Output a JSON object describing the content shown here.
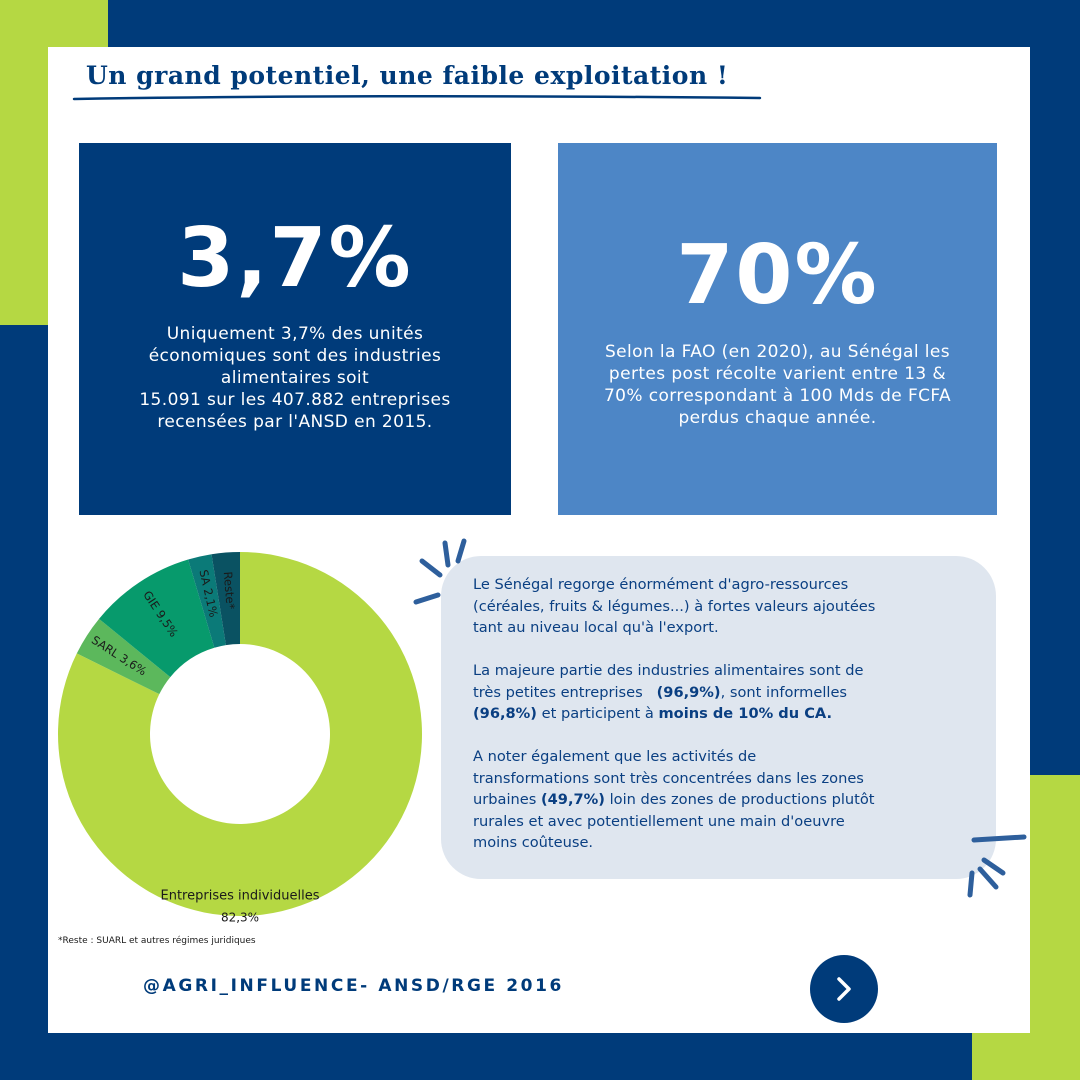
{
  "title": "Un grand potentiel, une faible exploitation !",
  "stat_left": {
    "value": "3,7%",
    "lines": [
      "Uniquement 3,7% des unités",
      "économiques sont des industries",
      "alimentaires soit",
      "15.091 sur les 407.882 entreprises",
      "recensées par l'ANSD en 2015."
    ]
  },
  "stat_right": {
    "value": "70%",
    "lines": [
      "Selon la FAO (en 2020), au Sénégal les",
      "pertes post récolte varient entre 13 &",
      "70% correspondant à 100 Mds de FCFA",
      "perdus chaque année."
    ]
  },
  "chart_data": {
    "type": "pie",
    "donut": true,
    "slices": [
      {
        "label": "Entreprises individuelles",
        "value": 82.3,
        "display": "82,3%",
        "color": "#b5d843"
      },
      {
        "label": "SARL",
        "value": 3.6,
        "display": "3,6%",
        "color": "#5cb85c"
      },
      {
        "label": "GIE",
        "value": 9.5,
        "display": "9,5%",
        "color": "#079a6c"
      },
      {
        "label": "SA",
        "value": 2.1,
        "display": "2,1%",
        "color": "#0b7a78"
      },
      {
        "label": "Reste*",
        "value": 2.5,
        "display": "",
        "color": "#0a5262"
      }
    ]
  },
  "footnote": "*Reste : SUARL et autres régimes juridiques",
  "bubble": {
    "p1": [
      "Le Sénégal regorge énormément d'agro-ressources",
      "(céréales, fruits & légumes...) à fortes valeurs ajoutées",
      "tant au niveau local qu'à l'export."
    ],
    "p2": {
      "l1": "La majeure partie des industries alimentaires sont de",
      "l2_a": "très petites entreprises   ",
      "l2_b": "(96,9%)",
      "l2_c": ", sont informelles",
      "l3_a": "(96,8%)",
      "l3_b": " et participent à ",
      "l3_c": "moins de 10% du CA."
    },
    "p3": {
      "l1": "A noter également que les activités de",
      "l2": "transformations sont très concentrées dans les zones",
      "l3_a": "urbaines ",
      "l3_b": "(49,7%)",
      "l3_c": " loin des zones de productions plutôt",
      "l4": "rurales et avec potentiellement une main d'oeuvre",
      "l5": "moins coûteuse."
    }
  },
  "footer": "@AGRI_INFLUENCE- ANSD/RGE 2016",
  "next_icon": "chevron-right-icon",
  "colors": {
    "navy": "#003b7a",
    "lime": "#b5d843",
    "light_blue": "#4d86c6",
    "bubble_bg": "#dfe6ef"
  }
}
